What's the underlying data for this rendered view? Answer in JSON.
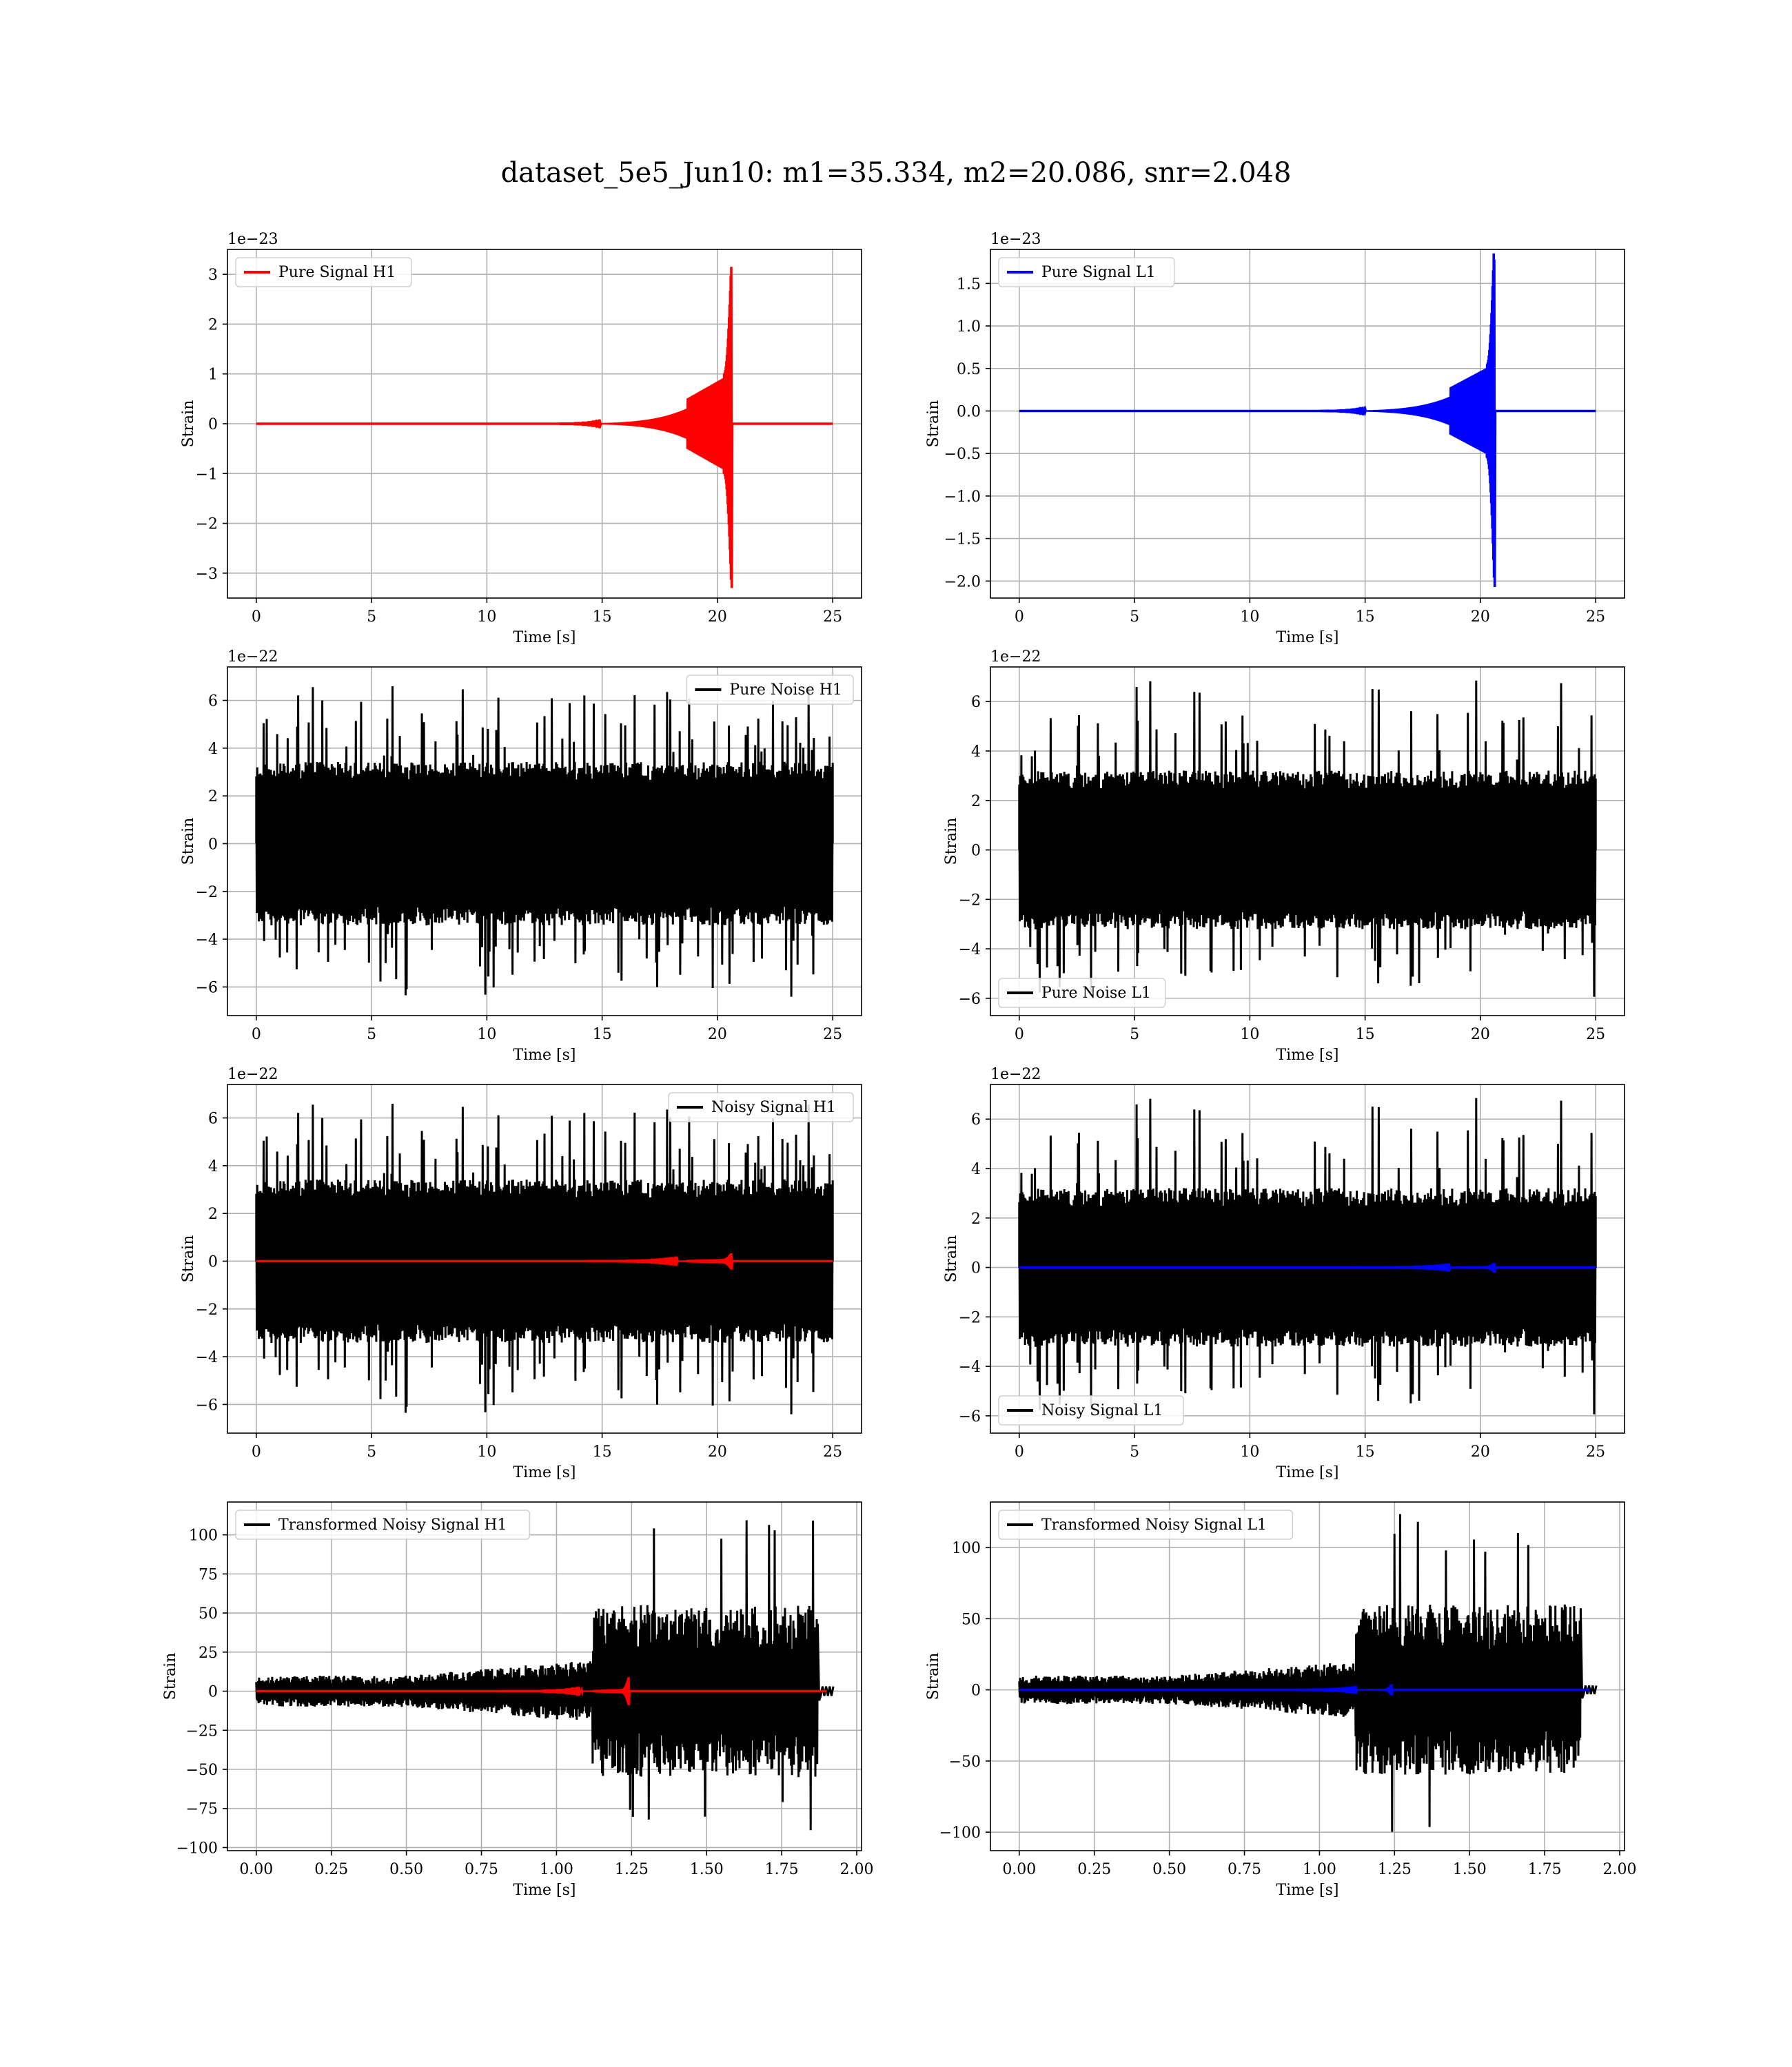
{
  "figure": {
    "title": "dataset_5e5_Jun10: m1=35.334, m2=20.086, snr=2.048"
  },
  "colors": {
    "h1": "#ff0000",
    "l1": "#0000ff",
    "noise": "#000000",
    "grid": "#b0b0b0"
  },
  "chart_data": [
    {
      "type": "line",
      "legend": [
        "Pure Signal H1"
      ],
      "legend_loc": "upper left",
      "xlabel": "Time [s]",
      "ylabel": "Strain",
      "offset": "1e−23",
      "xlim": [
        -1.25,
        26.25
      ],
      "ylim": [
        -3.5,
        3.5
      ],
      "xticks": [
        0,
        5,
        10,
        15,
        20,
        25
      ],
      "xtick_labels": [
        "0",
        "5",
        "10",
        "15",
        "20",
        "25"
      ],
      "yticks": [
        -3,
        -2,
        -1,
        0,
        1,
        2,
        3
      ],
      "ytick_labels": [
        "−3",
        "−2",
        "−1",
        "0",
        "1",
        "2",
        "3"
      ],
      "x_range": [
        0,
        25
      ],
      "series": [
        {
          "name": "Pure Signal H1",
          "kind": "chirp",
          "color": "#ff0000",
          "peak_time": 20.6,
          "peak_max": 3.15,
          "peak_min": -3.3,
          "plateau": 1.0,
          "start_time": 10.0
        }
      ]
    },
    {
      "type": "line",
      "legend": [
        "Pure Signal L1"
      ],
      "legend_loc": "upper left",
      "xlabel": "Time [s]",
      "ylabel": "Strain",
      "offset": "1e−23",
      "xlim": [
        -1.25,
        26.25
      ],
      "ylim": [
        -2.2,
        1.9
      ],
      "xticks": [
        0,
        5,
        10,
        15,
        20,
        25
      ],
      "xtick_labels": [
        "0",
        "5",
        "10",
        "15",
        "20",
        "25"
      ],
      "yticks": [
        -2.0,
        -1.5,
        -1.0,
        -0.5,
        0.0,
        0.5,
        1.0,
        1.5
      ],
      "ytick_labels": [
        "−2.0",
        "−1.5",
        "−1.0",
        "−0.5",
        "0.0",
        "0.5",
        "1.0",
        "1.5"
      ],
      "x_range": [
        0,
        25
      ],
      "series": [
        {
          "name": "Pure Signal L1",
          "kind": "chirp",
          "color": "#0000ff",
          "peak_time": 20.6,
          "peak_max": 1.78,
          "peak_min": -2.07,
          "plateau": 0.55,
          "start_time": 10.0
        }
      ]
    },
    {
      "type": "line",
      "legend": [
        "Pure Noise H1"
      ],
      "legend_loc": "upper right",
      "xlabel": "Time [s]",
      "ylabel": "Strain",
      "offset": "1e−22",
      "xlim": [
        -1.25,
        26.25
      ],
      "ylim": [
        -7.2,
        7.4
      ],
      "xticks": [
        0,
        5,
        10,
        15,
        20,
        25
      ],
      "xtick_labels": [
        "0",
        "5",
        "10",
        "15",
        "20",
        "25"
      ],
      "yticks": [
        -6,
        -4,
        -2,
        0,
        2,
        4,
        6
      ],
      "ytick_labels": [
        "−6",
        "−4",
        "−2",
        "0",
        "2",
        "4",
        "6"
      ],
      "x_range": [
        0,
        25
      ],
      "series": [
        {
          "name": "Pure Noise H1",
          "kind": "noise",
          "color": "#000000",
          "core": 3.2,
          "max": 6.6,
          "min": -6.5,
          "seed": 11
        }
      ]
    },
    {
      "type": "line",
      "legend": [
        "Pure Noise L1"
      ],
      "legend_loc": "lower left",
      "xlabel": "Time [s]",
      "ylabel": "Strain",
      "offset": "1e−22",
      "xlim": [
        -1.25,
        26.25
      ],
      "ylim": [
        -6.7,
        7.4
      ],
      "xticks": [
        0,
        5,
        10,
        15,
        20,
        25
      ],
      "xtick_labels": [
        "0",
        "5",
        "10",
        "15",
        "20",
        "25"
      ],
      "yticks": [
        -6,
        -4,
        -2,
        0,
        2,
        4,
        6
      ],
      "ytick_labels": [
        "−6",
        "−4",
        "−2",
        "0",
        "2",
        "4",
        "6"
      ],
      "x_range": [
        0,
        25
      ],
      "series": [
        {
          "name": "Pure Noise L1",
          "kind": "noise",
          "color": "#000000",
          "core": 3.0,
          "max": 7.1,
          "min": -6.0,
          "seed": 23
        }
      ]
    },
    {
      "type": "line",
      "legend": [
        "Noisy Signal H1"
      ],
      "legend_loc": "upper right",
      "xlabel": "Time [s]",
      "ylabel": "Strain",
      "offset": "1e−22",
      "xlim": [
        -1.25,
        26.25
      ],
      "ylim": [
        -7.2,
        7.4
      ],
      "xticks": [
        0,
        5,
        10,
        15,
        20,
        25
      ],
      "xtick_labels": [
        "0",
        "5",
        "10",
        "15",
        "20",
        "25"
      ],
      "yticks": [
        -6,
        -4,
        -2,
        0,
        2,
        4,
        6
      ],
      "ytick_labels": [
        "−6",
        "−4",
        "−2",
        "0",
        "2",
        "4",
        "6"
      ],
      "x_range": [
        0,
        25
      ],
      "series": [
        {
          "name": "Noisy Signal H1",
          "kind": "noise",
          "color": "#000000",
          "core": 3.2,
          "max": 6.6,
          "min": -6.5,
          "seed": 11
        },
        {
          "kind": "chirp",
          "color": "#ff0000",
          "peak_time": 20.6,
          "peak_max": 0.33,
          "peak_min": -0.35,
          "plateau": 0.1,
          "start_time": 10.0
        }
      ]
    },
    {
      "type": "line",
      "legend": [
        "Noisy Signal L1"
      ],
      "legend_loc": "lower left",
      "xlabel": "Time [s]",
      "ylabel": "Strain",
      "offset": "1e−22",
      "xlim": [
        -1.25,
        26.25
      ],
      "ylim": [
        -6.7,
        7.4
      ],
      "xticks": [
        0,
        5,
        10,
        15,
        20,
        25
      ],
      "xtick_labels": [
        "0",
        "5",
        "10",
        "15",
        "20",
        "25"
      ],
      "yticks": [
        -6,
        -4,
        -2,
        0,
        2,
        4,
        6
      ],
      "ytick_labels": [
        "−6",
        "−4",
        "−2",
        "0",
        "2",
        "4",
        "6"
      ],
      "x_range": [
        0,
        25
      ],
      "series": [
        {
          "name": "Noisy Signal L1",
          "kind": "noise",
          "color": "#000000",
          "core": 3.0,
          "max": 7.1,
          "min": -6.0,
          "seed": 23
        },
        {
          "kind": "chirp",
          "color": "#0000ff",
          "peak_time": 20.6,
          "peak_max": 0.18,
          "peak_min": -0.21,
          "plateau": 0.06,
          "start_time": 10.0
        }
      ]
    },
    {
      "type": "line",
      "legend": [
        "Transformed Noisy Signal H1"
      ],
      "legend_loc": "upper left",
      "xlabel": "Time [s]",
      "ylabel": "Strain",
      "offset": "",
      "xlim": [
        -0.096,
        2.016
      ],
      "ylim": [
        -102,
        121
      ],
      "xticks": [
        0.0,
        0.25,
        0.5,
        0.75,
        1.0,
        1.25,
        1.5,
        1.75,
        2.0
      ],
      "xtick_labels": [
        "0.00",
        "0.25",
        "0.50",
        "0.75",
        "1.00",
        "1.25",
        "1.50",
        "1.75",
        "2.00"
      ],
      "yticks": [
        -100,
        -75,
        -50,
        -25,
        0,
        25,
        50,
        75,
        100
      ],
      "ytick_labels": [
        "−100",
        "−75",
        "−50",
        "−25",
        "0",
        "25",
        "50",
        "75",
        "100"
      ],
      "x_range": [
        0,
        1.9
      ],
      "series": [
        {
          "name": "Transformed Noisy Signal H1",
          "kind": "whitened",
          "color": "#000000",
          "early": 10,
          "rise_start": 0.5,
          "jump_time": 1.12,
          "late": 55,
          "max": 112,
          "min": -92,
          "end_time": 1.87,
          "seed": 37
        },
        {
          "kind": "chirp",
          "color": "#ff0000",
          "peak_time": 1.24,
          "peak_max": 9,
          "peak_min": -9,
          "plateau": 1.5,
          "start_time": 0.6
        }
      ]
    },
    {
      "type": "line",
      "legend": [
        "Transformed Noisy Signal L1"
      ],
      "legend_loc": "upper left",
      "xlabel": "Time [s]",
      "ylabel": "Strain",
      "offset": "",
      "xlim": [
        -0.096,
        2.016
      ],
      "ylim": [
        -113,
        132
      ],
      "xticks": [
        0.0,
        0.25,
        0.5,
        0.75,
        1.0,
        1.25,
        1.5,
        1.75,
        2.0
      ],
      "xtick_labels": [
        "0.00",
        "0.25",
        "0.50",
        "0.75",
        "1.00",
        "1.25",
        "1.50",
        "1.75",
        "2.00"
      ],
      "yticks": [
        -100,
        -50,
        0,
        50,
        100
      ],
      "ytick_labels": [
        "−100",
        "−50",
        "0",
        "50",
        "100"
      ],
      "x_range": [
        0,
        1.9
      ],
      "series": [
        {
          "name": "Transformed Noisy Signal L1",
          "kind": "whitened",
          "color": "#000000",
          "early": 10,
          "rise_start": 0.5,
          "jump_time": 1.12,
          "late": 60,
          "max": 126,
          "min": -104,
          "end_time": 1.87,
          "seed": 53
        },
        {
          "kind": "chirp",
          "color": "#0000ff",
          "peak_time": 1.24,
          "peak_max": 4,
          "peak_min": -4,
          "plateau": 0.8,
          "start_time": 0.6
        }
      ]
    }
  ]
}
